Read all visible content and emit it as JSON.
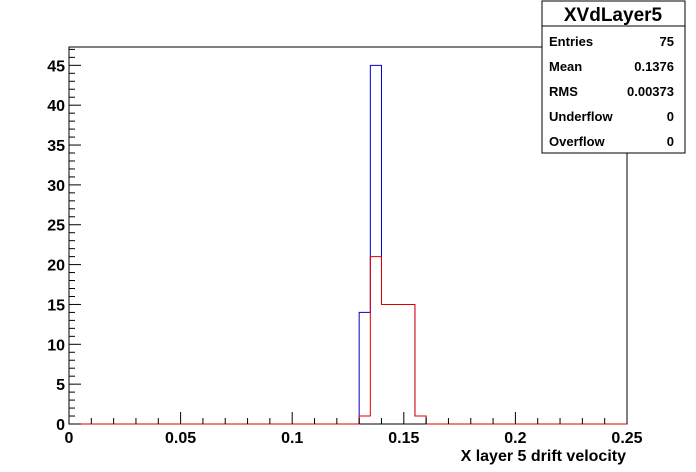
{
  "chart_data": {
    "type": "bar",
    "subtype": "step-histogram",
    "title": "",
    "xlabel": "X layer 5 drift velocity",
    "ylabel": "",
    "xlim": [
      0,
      0.25
    ],
    "ylim": [
      0,
      47.3
    ],
    "x_ticks": [
      "0",
      "0.05",
      "0.1",
      "0.15",
      "0.2",
      "0.25"
    ],
    "y_ticks": [
      "0",
      "5",
      "10",
      "15",
      "20",
      "25",
      "30",
      "35",
      "40",
      "45"
    ],
    "grid": false,
    "bin_width": 0.005,
    "series": [
      {
        "color": "#0000cc",
        "bins": [
          {
            "x": 0.13,
            "value": 14
          },
          {
            "x": 0.135,
            "value": 45
          },
          {
            "x": 0.14,
            "value": 15
          },
          {
            "x": 0.155,
            "value": 1
          }
        ]
      },
      {
        "color": "#dd0000",
        "bins": [
          {
            "x": 0.13,
            "value": 1
          },
          {
            "x": 0.135,
            "value": 21
          },
          {
            "x": 0.14,
            "value": 15
          },
          {
            "x": 0.155,
            "value": 1
          }
        ]
      }
    ],
    "stats_box": {
      "title": "XVdLayer5",
      "rows": [
        {
          "label": "Entries",
          "value": "75"
        },
        {
          "label": "Mean",
          "value": "0.1376"
        },
        {
          "label": "RMS",
          "value": "0.00373"
        },
        {
          "label": "Underflow",
          "value": "0"
        },
        {
          "label": "Overflow",
          "value": "0"
        }
      ]
    }
  }
}
